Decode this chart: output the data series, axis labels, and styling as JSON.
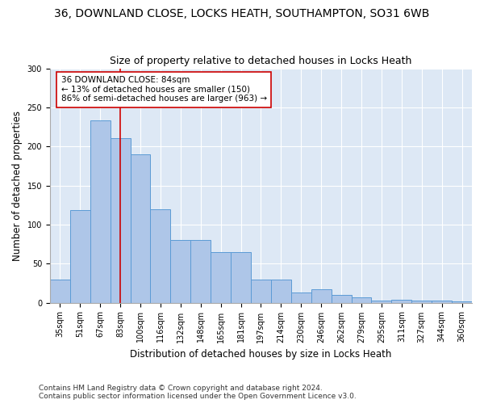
{
  "title": "36, DOWNLAND CLOSE, LOCKS HEATH, SOUTHAMPTON, SO31 6WB",
  "subtitle": "Size of property relative to detached houses in Locks Heath",
  "xlabel": "Distribution of detached houses by size in Locks Heath",
  "ylabel": "Number of detached properties",
  "categories": [
    "35sqm",
    "51sqm",
    "67sqm",
    "83sqm",
    "100sqm",
    "116sqm",
    "132sqm",
    "148sqm",
    "165sqm",
    "181sqm",
    "197sqm",
    "214sqm",
    "230sqm",
    "246sqm",
    "262sqm",
    "279sqm",
    "295sqm",
    "311sqm",
    "327sqm",
    "344sqm",
    "360sqm"
  ],
  "values": [
    30,
    119,
    233,
    211,
    190,
    120,
    80,
    80,
    65,
    65,
    30,
    30,
    13,
    17,
    10,
    7,
    3,
    4,
    3,
    3,
    2
  ],
  "bar_color": "#aec6e8",
  "bar_edge_color": "#5b9bd5",
  "vline_x": 3,
  "vline_color": "#cc0000",
  "annotation_text": "36 DOWNLAND CLOSE: 84sqm\n← 13% of detached houses are smaller (150)\n86% of semi-detached houses are larger (963) →",
  "annotation_box_color": "#ffffff",
  "annotation_box_edge": "#cc0000",
  "ylim": [
    0,
    300
  ],
  "yticks": [
    0,
    50,
    100,
    150,
    200,
    250,
    300
  ],
  "bg_color": "#dde8f5",
  "footnote": "Contains HM Land Registry data © Crown copyright and database right 2024.\nContains public sector information licensed under the Open Government Licence v3.0.",
  "title_fontsize": 10,
  "subtitle_fontsize": 9,
  "xlabel_fontsize": 8.5,
  "ylabel_fontsize": 8.5,
  "annotation_fontsize": 7.5,
  "footnote_fontsize": 6.5,
  "tick_fontsize": 7
}
